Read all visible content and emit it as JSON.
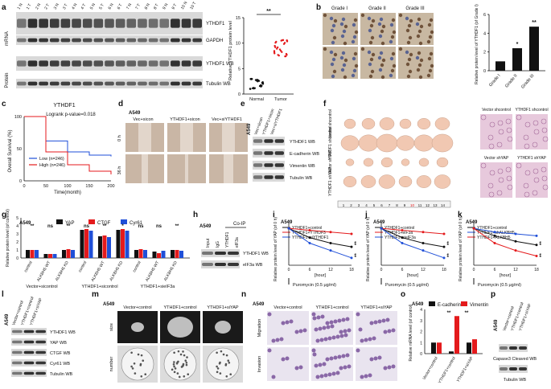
{
  "panels": {
    "a": {
      "letter": "a",
      "lanes": [
        "1 N",
        "1 T",
        "2 N",
        "2 T",
        "3 N",
        "3 T",
        "4 N",
        "4 T",
        "5 N",
        "5 T",
        "6 N",
        "6 T",
        "7 N",
        "7 T",
        "8 N",
        "8 T",
        "9 N",
        "9 T",
        "10 N",
        "10 T"
      ],
      "mrna_label": "mRNA",
      "protein_label": "Protein",
      "blots": [
        "YTHDF1",
        "GAPDH",
        "YTHDF1 WB",
        "Tubulin WB"
      ],
      "scatter": {
        "ylabel": "Relative YTHDF1 protein level",
        "categories": [
          "Normal",
          "Tumor"
        ],
        "yticks": [
          "0",
          "5",
          "10",
          "15"
        ],
        "sig": "**"
      }
    },
    "b": {
      "letter": "b",
      "grades": [
        "Grade I",
        "Grade II",
        "Grade III"
      ],
      "ylabel": "Relative protein level of YTHDF1 (of Grade I)",
      "yticks": [
        "0",
        "2",
        "4",
        "6"
      ],
      "sig": [
        "*",
        "**"
      ]
    },
    "c": {
      "letter": "c",
      "title": "YTHDF1",
      "pvalue": "Logrank p-value=0.018",
      "ylabel": "Overall Survival (%)",
      "xlabel": "Time(month)",
      "xticks": [
        "0",
        "50",
        "100",
        "150",
        "200"
      ],
      "yticks": [
        "0",
        "50",
        "100"
      ],
      "legend": [
        "Low (n=246)",
        "High (n=246)"
      ]
    },
    "d": {
      "letter": "d",
      "cell": "A549",
      "cols": [
        "Vec+sicon",
        "YTHDF1+sicon",
        "Vec+siYTHDF1"
      ],
      "rows": [
        "0 h",
        "36 h"
      ]
    },
    "e": {
      "letter": "e",
      "cell": "A549",
      "lanes": [
        "Vec+sicon",
        "YTHDF1+sicon",
        "Vec+siYTHDF1"
      ],
      "blots": [
        "YTHDF1 WB",
        "E-cadherin WB",
        "Vimentin WB",
        "Tubulin WB"
      ]
    },
    "f": {
      "letter": "f",
      "rows": [
        "Vector shcontrol",
        "YTHDF1 shcontrol",
        "Vector shYAP",
        "YTHDF1 shYAP"
      ],
      "ruler": [
        "1",
        "2",
        "3",
        "4",
        "5",
        "6",
        "7",
        "8",
        "9",
        "10",
        "11",
        "12",
        "13",
        "14"
      ],
      "histo": [
        "Vector shcontrol",
        "YTHDF1 shcontrol",
        "Vector shYAP",
        "YTHDF1 shYAP"
      ]
    },
    "g": {
      "letter": "g",
      "cell": "A549",
      "legend": [
        "YAP",
        "CTGF",
        "Cyr61"
      ],
      "ylabel": "Relative protein level (of control)",
      "yticks": [
        "0",
        "1",
        "2",
        "3",
        "4",
        "5"
      ],
      "groups": [
        "control",
        "ALKBH5 WT",
        "ALKBH5 KD",
        "control",
        "ALKBH5 WT",
        "ALKBH5 KD",
        "control",
        "ALKBH5 WT",
        "ALKBH5 KD"
      ],
      "conditions": [
        "Vector+sicontrol",
        "YTHDF1+sicontrol",
        "YTHDF1+sieIF3a"
      ],
      "sig": [
        "**",
        "ns",
        "**",
        "ns",
        "**",
        "*",
        "ns",
        "ns",
        "**"
      ]
    },
    "h": {
      "letter": "h",
      "cell": "A549",
      "coip": "Co-IP",
      "lanes": [
        "Input",
        "IgG",
        "YTHDF1",
        "eIF3a"
      ],
      "blots": [
        "YTHDF1 WB",
        "eIF3a WB"
      ]
    },
    "i": {
      "letter": "i",
      "cell": "A549",
      "legend": [
        "YTHDF1+control",
        "YTHDF1+YTHDF3",
        "YTHDF1+siYTHDF1"
      ],
      "ylabel": "Relative protein level of YAP (of 0 h)",
      "xlabel": "[hour]",
      "treatment": "Puromycin (0.5 μg/ml)",
      "sig": [
        "**",
        "**"
      ]
    },
    "j": {
      "letter": "j",
      "cell": "A549",
      "legend": [
        "YTHDF1+control",
        "YTHDF1+eIF3a",
        "YTHDF1+sieIF3a"
      ],
      "ylabel": "Relative protein level of YAP (of 0 h)",
      "xlabel": "[hour]",
      "treatment": "Puromycin (0.5 μg/ml)",
      "sig": [
        "**",
        "**"
      ]
    },
    "k": {
      "letter": "k",
      "cell": "A549",
      "legend": [
        "YTHDF1+control",
        "YTHDF1+shALKBH5",
        "YTHDF1+ALKBH5"
      ],
      "ylabel": "Relative protein level of YAP (of 0 h)",
      "xlabel": "[hour]",
      "treatment": "Puromycin (0.5 μg/ml)",
      "sig": [
        "**",
        "**"
      ]
    },
    "l": {
      "letter": "l",
      "cell": "A549",
      "lanes": [
        "Vector+control",
        "YTHDF1+control",
        "YTHDF1+siYAP"
      ],
      "blots": [
        "YTHDF1 WB",
        "YAP WB",
        "CTGF WB",
        "Cyr61 WB",
        "Tubulin WB"
      ]
    },
    "m": {
      "letter": "m",
      "cell": "A549",
      "cols": [
        "Vector+control",
        "YTHDF1+control",
        "YTHDF1+siYAP"
      ],
      "rows": [
        "size",
        "number"
      ]
    },
    "n": {
      "letter": "n",
      "cell": "A549",
      "cols": [
        "Vector+control",
        "YTHDF1+control",
        "YTHDF1+siYAP"
      ],
      "rows": [
        "Migration",
        "Invasion"
      ]
    },
    "o": {
      "letter": "o",
      "cell": "A549",
      "legend": [
        "E-cadherin",
        "Vimentin"
      ],
      "ylabel": "Relative mRNA level (of control)",
      "yticks": [
        "0",
        "1",
        "2",
        "3",
        "4"
      ],
      "categories": [
        "Vector+control",
        "YTHDF1+control",
        "YTHDF1+siYAP"
      ],
      "sig": [
        "**",
        "**"
      ]
    },
    "p": {
      "letter": "p",
      "cell": "A549",
      "lanes": [
        "Vector+control",
        "YTHDF1+control",
        "YTHDF1+siYAP"
      ],
      "blots": [
        "Capase3 Cleaved WB",
        "Tubulin WB"
      ]
    }
  },
  "colors": {
    "black": "#111111",
    "red": "#e41a1c",
    "blue": "#1f4fd8",
    "darkred": "#b00000"
  },
  "chart_data": [
    {
      "type": "bar",
      "panel": "b",
      "categories": [
        "Grade I",
        "Grade II",
        "Grade III"
      ],
      "values": [
        1.0,
        2.4,
        4.7
      ],
      "ylim": [
        0,
        6
      ]
    },
    {
      "type": "line",
      "panel": "c",
      "x": [
        0,
        50,
        100,
        150,
        200
      ],
      "series": [
        {
          "name": "Low (n=246)",
          "values": [
            100,
            62,
            45,
            40,
            38
          ]
        },
        {
          "name": "High (n=246)",
          "values": [
            100,
            45,
            25,
            15,
            10
          ]
        }
      ],
      "ylim": [
        0,
        100
      ]
    },
    {
      "type": "bar",
      "panel": "g",
      "categories": [
        "control",
        "ALKBH5 WT",
        "ALKBH5 KD",
        "control",
        "ALKBH5 WT",
        "ALKBH5 KD",
        "control",
        "ALKBH5 WT",
        "ALKBH5 KD"
      ],
      "series": [
        {
          "name": "YAP",
          "values": [
            1.0,
            0.5,
            1.0,
            3.5,
            2.7,
            3.5,
            1.0,
            0.8,
            1.0
          ]
        },
        {
          "name": "CTGF",
          "values": [
            1.0,
            0.5,
            1.1,
            3.6,
            2.8,
            3.6,
            1.1,
            0.6,
            1.0
          ]
        },
        {
          "name": "Cyr61",
          "values": [
            1.0,
            0.5,
            1.0,
            3.4,
            2.6,
            3.4,
            1.0,
            0.9,
            0.9
          ]
        }
      ],
      "ylim": [
        0,
        5
      ]
    },
    {
      "type": "line",
      "panel": "i",
      "x": [
        0,
        6,
        12,
        18
      ],
      "series": [
        {
          "name": "YTHDF1+control",
          "values": [
            1.0,
            0.75,
            0.6,
            0.5
          ]
        },
        {
          "name": "YTHDF1+YTHDF3",
          "values": [
            1.0,
            0.95,
            0.9,
            0.85
          ]
        },
        {
          "name": "YTHDF1+siYTHDF1",
          "values": [
            1.0,
            0.6,
            0.4,
            0.2
          ]
        }
      ],
      "ylim": [
        0,
        1.2
      ]
    },
    {
      "type": "line",
      "panel": "j",
      "x": [
        0,
        6,
        12,
        18
      ],
      "series": [
        {
          "name": "YTHDF1+control",
          "values": [
            1.0,
            0.75,
            0.6,
            0.5
          ]
        },
        {
          "name": "YTHDF1+eIF3a",
          "values": [
            1.0,
            0.95,
            0.9,
            0.85
          ]
        },
        {
          "name": "YTHDF1+sieIF3a",
          "values": [
            1.0,
            0.6,
            0.4,
            0.2
          ]
        }
      ],
      "ylim": [
        0,
        1.2
      ]
    },
    {
      "type": "line",
      "panel": "k",
      "x": [
        0,
        6,
        12,
        18
      ],
      "series": [
        {
          "name": "YTHDF1+control",
          "values": [
            1.0,
            0.8,
            0.65,
            0.55
          ]
        },
        {
          "name": "YTHDF1+shALKBH5",
          "values": [
            1.0,
            0.9,
            0.85,
            0.8
          ]
        },
        {
          "name": "YTHDF1+ALKBH5",
          "values": [
            1.0,
            0.6,
            0.4,
            0.25
          ]
        }
      ],
      "ylim": [
        0,
        1.2
      ]
    },
    {
      "type": "bar",
      "panel": "o",
      "categories": [
        "Vector+control",
        "YTHDF1+control",
        "YTHDF1+siYAP"
      ],
      "series": [
        {
          "name": "E-cadherin",
          "values": [
            1.0,
            0.2,
            1.0
          ]
        },
        {
          "name": "Vimentin",
          "values": [
            1.0,
            3.4,
            1.3
          ]
        }
      ],
      "ylim": [
        0,
        4
      ]
    }
  ]
}
